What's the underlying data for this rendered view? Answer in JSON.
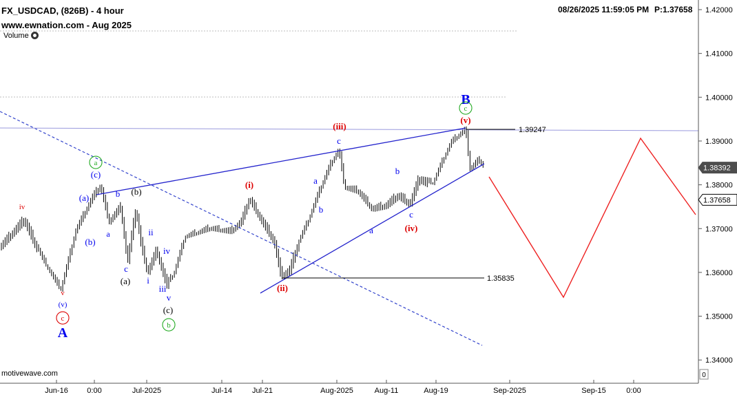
{
  "header": {
    "symbol_title": "FX_USDCAD, (826B) - 4 hour",
    "site_title": "www.ewnation.com  - Aug 2025",
    "timestamp": "08/26/2025 11:59:05 PM",
    "price_readout": "P:1.37658",
    "volume_label": "Volume"
  },
  "watermark": "motivewave.com",
  "chart_data": {
    "type": "candlestick",
    "y_axis": {
      "ylim": [
        1.3395,
        1.4255
      ],
      "ticks": [
        "1.34000",
        "1.35000",
        "1.36000",
        "1.37000",
        "1.38000",
        "1.39000",
        "1.40000",
        "1.41000",
        "1.42000"
      ],
      "price_tags": [
        {
          "label": "1.38392",
          "value": 1.38392,
          "style": "filled",
          "color": "#4d4d4d"
        },
        {
          "label": "1.37658",
          "value": 1.37658,
          "style": "outline",
          "color": "#000000"
        }
      ],
      "scale_button": "0"
    },
    "x_axis": {
      "ticks": [
        "Jun-16",
        "0:00",
        "Jul-2025",
        "Jul-14",
        "Jul-21",
        "Aug-2025",
        "Aug-11",
        "Aug-19",
        "Sep-2025",
        "Sep-15",
        "0:00"
      ]
    },
    "levels": [
      {
        "label": "1.39247",
        "value": 1.39247
      },
      {
        "label": "1.35835",
        "value": 1.35835
      }
    ],
    "wave_labels": [
      {
        "text": "A",
        "color": "#0000ee"
      },
      {
        "text": "B",
        "color": "#0000ee"
      },
      {
        "text": "c",
        "color": "#dd0000"
      },
      {
        "text": "(v)",
        "color": "#0000ee"
      },
      {
        "text": "v",
        "color": "#dd0000"
      },
      {
        "text": "iv",
        "color": "#dd0000"
      },
      {
        "text": "a",
        "color": "#22aa22"
      },
      {
        "text": "(c)",
        "color": "#0000ee"
      },
      {
        "text": "(a)",
        "color": "#0000ee"
      },
      {
        "text": "(b)",
        "color": "#0000ee"
      },
      {
        "text": "a",
        "color": "#0000ee"
      },
      {
        "text": "b",
        "color": "#0000ee"
      },
      {
        "text": "(b)",
        "color": "#000000"
      },
      {
        "text": "c",
        "color": "#0000ee"
      },
      {
        "text": "(a)",
        "color": "#000000"
      },
      {
        "text": "ii",
        "color": "#0000ee"
      },
      {
        "text": "i",
        "color": "#0000ee"
      },
      {
        "text": "iv",
        "color": "#0000ee"
      },
      {
        "text": "iii",
        "color": "#0000ee"
      },
      {
        "text": "v",
        "color": "#0000ee"
      },
      {
        "text": "(c)",
        "color": "#000000"
      },
      {
        "text": "b",
        "color": "#22aa22"
      },
      {
        "text": "(i)",
        "color": "#dd0000"
      },
      {
        "text": "(ii)",
        "color": "#dd0000"
      },
      {
        "text": "(iii)",
        "color": "#dd0000"
      },
      {
        "text": "a",
        "color": "#0000ee"
      },
      {
        "text": "b",
        "color": "#0000ee"
      },
      {
        "text": "c",
        "color": "#0000ee"
      },
      {
        "text": "a",
        "color": "#0000ee"
      },
      {
        "text": "b",
        "color": "#0000ee"
      },
      {
        "text": "c",
        "color": "#0000ee"
      },
      {
        "text": "(iv)",
        "color": "#dd0000"
      },
      {
        "text": "(v)",
        "color": "#dd0000"
      },
      {
        "text": "c",
        "color": "#22aa22"
      }
    ],
    "colors": {
      "candles": "#000000",
      "trendlines": "#2222cc",
      "dashed_channel": "#3344cc",
      "horizontal_ref": "#9999dd",
      "projection": "#ee2222",
      "grid": "#bbbbbb"
    }
  }
}
